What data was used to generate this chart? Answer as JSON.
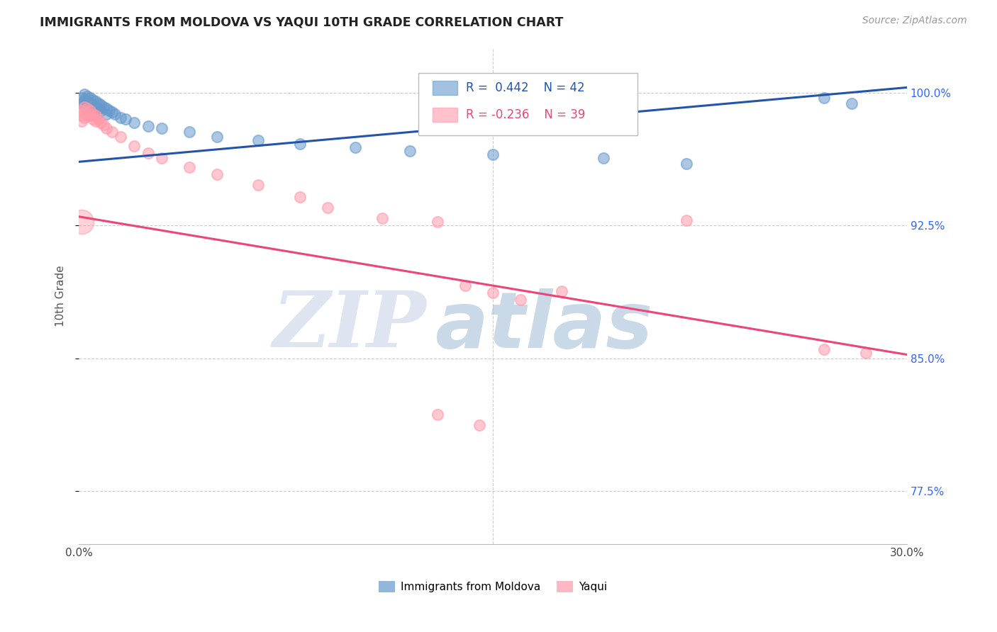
{
  "title": "IMMIGRANTS FROM MOLDOVA VS YAQUI 10TH GRADE CORRELATION CHART",
  "source": "Source: ZipAtlas.com",
  "ylabel": "10th Grade",
  "y_ticks": [
    0.775,
    0.85,
    0.925,
    1.0
  ],
  "y_tick_labels": [
    "77.5%",
    "85.0%",
    "92.5%",
    "100.0%"
  ],
  "x_range": [
    0.0,
    0.3
  ],
  "y_range": [
    0.745,
    1.025
  ],
  "watermark_zip": "ZIP",
  "watermark_atlas": "atlas",
  "blue_scatter": [
    [
      0.001,
      0.997
    ],
    [
      0.001,
      0.994
    ],
    [
      0.002,
      0.999
    ],
    [
      0.002,
      0.996
    ],
    [
      0.002,
      0.993
    ],
    [
      0.003,
      0.998
    ],
    [
      0.003,
      0.995
    ],
    [
      0.003,
      0.992
    ],
    [
      0.004,
      0.997
    ],
    [
      0.004,
      0.994
    ],
    [
      0.004,
      0.991
    ],
    [
      0.005,
      0.996
    ],
    [
      0.005,
      0.993
    ],
    [
      0.005,
      0.99
    ],
    [
      0.006,
      0.995
    ],
    [
      0.006,
      0.992
    ],
    [
      0.007,
      0.994
    ],
    [
      0.007,
      0.991
    ],
    [
      0.008,
      0.993
    ],
    [
      0.008,
      0.99
    ],
    [
      0.009,
      0.992
    ],
    [
      0.01,
      0.991
    ],
    [
      0.01,
      0.988
    ],
    [
      0.011,
      0.99
    ],
    [
      0.012,
      0.989
    ],
    [
      0.013,
      0.988
    ],
    [
      0.015,
      0.986
    ],
    [
      0.017,
      0.985
    ],
    [
      0.02,
      0.983
    ],
    [
      0.025,
      0.981
    ],
    [
      0.03,
      0.98
    ],
    [
      0.04,
      0.978
    ],
    [
      0.05,
      0.975
    ],
    [
      0.065,
      0.973
    ],
    [
      0.08,
      0.971
    ],
    [
      0.1,
      0.969
    ],
    [
      0.12,
      0.967
    ],
    [
      0.15,
      0.965
    ],
    [
      0.19,
      0.963
    ],
    [
      0.22,
      0.96
    ],
    [
      0.27,
      0.997
    ],
    [
      0.28,
      0.994
    ]
  ],
  "blue_sizes": [
    80,
    80,
    80,
    80,
    80,
    80,
    80,
    80,
    80,
    80,
    80,
    80,
    80,
    80,
    80,
    80,
    80,
    80,
    80,
    80,
    80,
    80,
    80,
    80,
    80,
    80,
    80,
    80,
    80,
    80,
    80,
    80,
    80,
    80,
    80,
    80,
    80,
    80,
    80,
    80,
    80,
    80
  ],
  "pink_scatter": [
    [
      0.001,
      0.99
    ],
    [
      0.001,
      0.987
    ],
    [
      0.001,
      0.984
    ],
    [
      0.002,
      0.992
    ],
    [
      0.002,
      0.989
    ],
    [
      0.002,
      0.986
    ],
    [
      0.003,
      0.991
    ],
    [
      0.003,
      0.988
    ],
    [
      0.004,
      0.99
    ],
    [
      0.004,
      0.987
    ],
    [
      0.005,
      0.988
    ],
    [
      0.005,
      0.985
    ],
    [
      0.006,
      0.987
    ],
    [
      0.006,
      0.984
    ],
    [
      0.007,
      0.985
    ],
    [
      0.008,
      0.983
    ],
    [
      0.009,
      0.982
    ],
    [
      0.01,
      0.98
    ],
    [
      0.012,
      0.978
    ],
    [
      0.015,
      0.975
    ],
    [
      0.02,
      0.97
    ],
    [
      0.025,
      0.966
    ],
    [
      0.03,
      0.963
    ],
    [
      0.04,
      0.958
    ],
    [
      0.05,
      0.954
    ],
    [
      0.065,
      0.948
    ],
    [
      0.08,
      0.941
    ],
    [
      0.09,
      0.935
    ],
    [
      0.11,
      0.929
    ],
    [
      0.13,
      0.927
    ],
    [
      0.14,
      0.891
    ],
    [
      0.15,
      0.887
    ],
    [
      0.16,
      0.883
    ],
    [
      0.175,
      0.888
    ],
    [
      0.22,
      0.928
    ],
    [
      0.27,
      0.855
    ],
    [
      0.285,
      0.853
    ],
    [
      0.13,
      0.818
    ],
    [
      0.145,
      0.812
    ]
  ],
  "pink_sizes_large": 500,
  "pink_sizes": [
    80,
    80,
    80,
    80,
    80,
    80,
    80,
    80,
    80,
    80,
    80,
    80,
    80,
    80,
    80,
    80,
    80,
    80,
    80,
    80,
    80,
    80,
    80,
    80,
    80,
    80,
    80,
    80,
    80,
    80,
    80,
    80,
    80,
    80,
    80,
    80,
    80,
    80,
    80
  ],
  "blue_line_x": [
    0.0,
    0.3
  ],
  "blue_line_y": [
    0.961,
    1.003
  ],
  "pink_line_x": [
    0.0,
    0.3
  ],
  "pink_line_y": [
    0.93,
    0.852
  ],
  "legend_blue_r": "R =  0.442",
  "legend_blue_n": "N = 42",
  "legend_pink_r": "R = -0.236",
  "legend_pink_n": "N = 39",
  "blue_color": "#6699CC",
  "blue_line_color": "#2255AA",
  "pink_color": "#FF99AA",
  "pink_line_color": "#EE4477",
  "right_axis_color": "#3366FF",
  "grid_color": "#CCCCCC",
  "watermark_zip_color": "#C8D4E8",
  "watermark_atlas_color": "#A8C0D8"
}
